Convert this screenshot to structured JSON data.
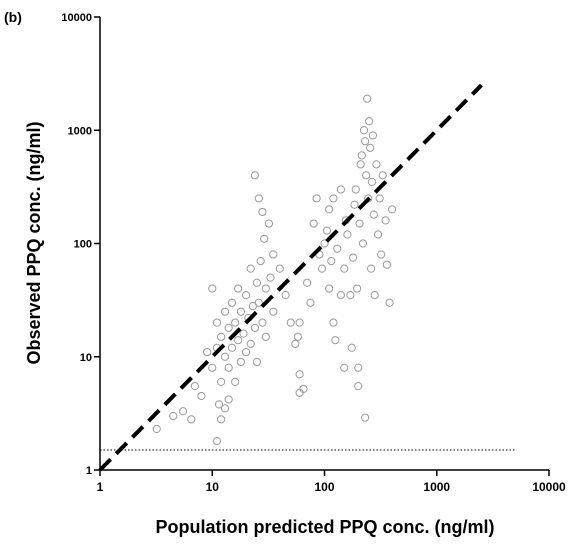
{
  "chart_data": {
    "type": "scatter",
    "panel_label": "(b)",
    "x_label": "Population predicted PPQ conc. (ng/ml)",
    "y_label": "Observed PPQ conc. (ng/ml)",
    "log_x": true,
    "log_y": true,
    "xlim": [
      1,
      10000
    ],
    "ylim": [
      1,
      10000
    ],
    "xticks": [
      1,
      10,
      100,
      1000,
      10000
    ],
    "yticks": [
      1,
      10,
      100,
      1000,
      10000
    ],
    "series": [
      {
        "color": "#9a9a9a",
        "x": [
          3.2,
          4.5,
          5.5,
          6.5,
          7,
          8,
          11,
          12,
          10,
          9,
          11.5,
          13,
          14,
          10,
          11,
          11,
          12,
          12,
          13,
          13,
          14,
          14,
          15,
          15,
          16,
          16,
          17,
          17,
          18,
          18,
          19,
          20,
          20,
          21,
          22,
          22,
          23,
          24,
          25,
          25,
          26,
          27,
          28,
          29,
          30,
          30,
          32,
          33,
          35,
          24,
          26,
          28,
          35,
          40,
          45,
          50,
          55,
          58,
          60,
          65,
          60,
          60,
          70,
          75,
          80,
          85,
          90,
          95,
          100,
          105,
          110,
          110,
          115,
          120,
          120,
          125,
          130,
          140,
          140,
          150,
          150,
          155,
          160,
          170,
          175,
          180,
          185,
          190,
          195,
          200,
          200,
          205,
          210,
          215,
          220,
          225,
          230,
          230,
          235,
          240,
          245,
          250,
          255,
          260,
          265,
          270,
          275,
          280,
          290,
          300,
          310,
          320,
          330,
          350,
          380,
          400,
          360
        ],
        "y": [
          2.3,
          3,
          3.3,
          2.8,
          5.5,
          4.5,
          1.8,
          2.8,
          40,
          11,
          3.8,
          3.5,
          4.2,
          8,
          12,
          20,
          6,
          15,
          10,
          25,
          8,
          18,
          12,
          30,
          6,
          20,
          14,
          40,
          9,
          25,
          16,
          11,
          35,
          22,
          60,
          13,
          28,
          18,
          45,
          9,
          30,
          70,
          20,
          110,
          15,
          40,
          150,
          50,
          25,
          400,
          250,
          190,
          80,
          60,
          35,
          20,
          13,
          15,
          7,
          5.2,
          20,
          4.8,
          45,
          30,
          150,
          250,
          80,
          60,
          100,
          130,
          40,
          200,
          70,
          20,
          250,
          14,
          90,
          35,
          300,
          60,
          8,
          160,
          120,
          35,
          12,
          75,
          220,
          300,
          40,
          5.5,
          8,
          150,
          500,
          600,
          100,
          1000,
          2.9,
          800,
          400,
          1900,
          250,
          1200,
          700,
          60,
          350,
          900,
          180,
          35,
          500,
          120,
          250,
          80,
          400,
          160,
          30,
          200,
          65
        ]
      }
    ],
    "identity_line": {
      "x": [
        1,
        2500
      ],
      "y": [
        1,
        2500
      ]
    },
    "lloq_line": {
      "x": [
        1,
        5000
      ],
      "y": [
        1.5,
        1.5
      ]
    }
  }
}
